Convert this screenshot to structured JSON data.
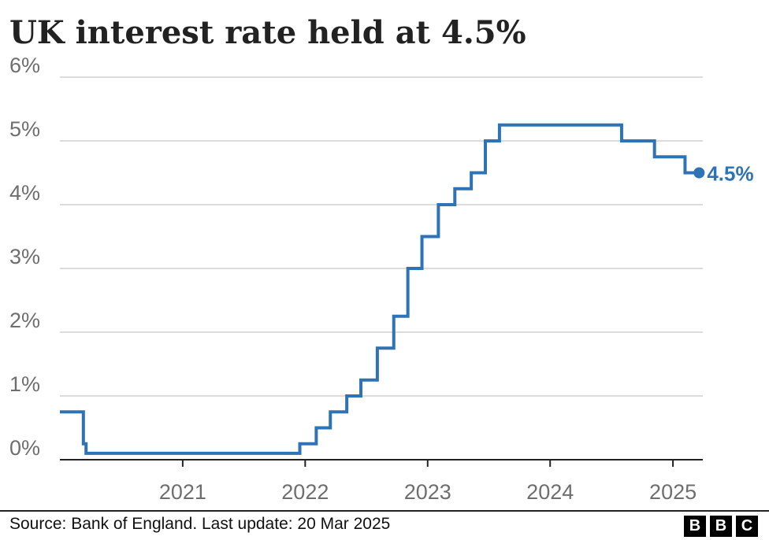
{
  "chart_data": {
    "type": "line",
    "title": "UK interest rate held at 4.5%",
    "xlabel": "",
    "ylabel": "",
    "x_tick_labels": [
      "2021",
      "2022",
      "2023",
      "2024",
      "2025"
    ],
    "y_tick_labels": [
      "0%",
      "1%",
      "2%",
      "3%",
      "4%",
      "5%",
      "6%"
    ],
    "xlim": [
      "2020-01-01",
      "2025-03-31"
    ],
    "ylim": [
      0,
      6
    ],
    "grid": true,
    "line_color": "#2f73b7",
    "end_label": "4.5%",
    "series": [
      {
        "step": "post",
        "points": [
          [
            "2020-01-01",
            0.75
          ],
          [
            "2020-03-11",
            0.25
          ],
          [
            "2020-03-19",
            0.1
          ],
          [
            "2021-12-16",
            0.25
          ],
          [
            "2022-02-03",
            0.5
          ],
          [
            "2022-03-17",
            0.75
          ],
          [
            "2022-05-05",
            1.0
          ],
          [
            "2022-06-16",
            1.25
          ],
          [
            "2022-08-04",
            1.75
          ],
          [
            "2022-09-22",
            2.25
          ],
          [
            "2022-11-03",
            3.0
          ],
          [
            "2022-12-15",
            3.5
          ],
          [
            "2023-02-02",
            4.0
          ],
          [
            "2023-03-23",
            4.25
          ],
          [
            "2023-05-11",
            4.5
          ],
          [
            "2023-06-22",
            5.0
          ],
          [
            "2023-08-03",
            5.25
          ],
          [
            "2024-08-01",
            5.0
          ],
          [
            "2024-11-07",
            4.75
          ],
          [
            "2025-02-06",
            4.5
          ],
          [
            "2025-03-20",
            4.5
          ]
        ]
      }
    ]
  },
  "footer": {
    "source": "Source: Bank of England. Last update: 20 Mar 2025",
    "logo": [
      "B",
      "B",
      "C"
    ]
  }
}
